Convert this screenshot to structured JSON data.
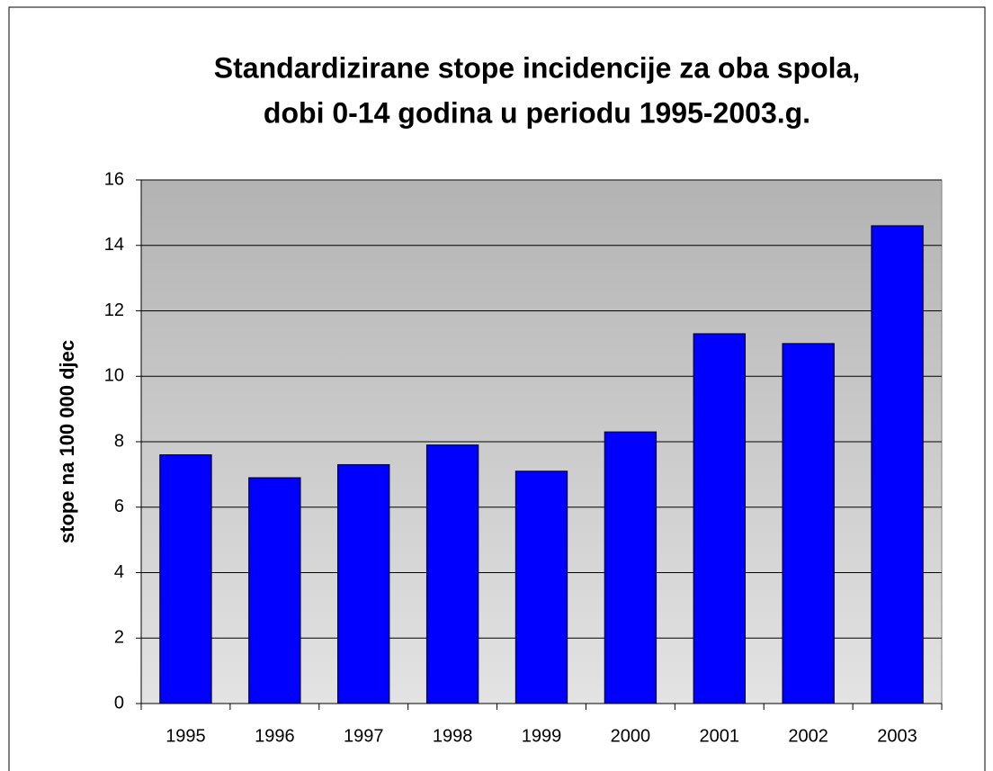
{
  "chart_data": {
    "type": "bar",
    "title": [
      "Standardizirane stope incidencije za oba spola,",
      "dobi 0-14 godina u periodu 1995-2003.g."
    ],
    "y_label": "stope na 100 000 djec",
    "categories": [
      "1995",
      "1996",
      "1997",
      "1998",
      "1999",
      "2000",
      "2001",
      "2002",
      "2003"
    ],
    "values": [
      7.6,
      6.9,
      7.3,
      7.9,
      7.1,
      8.3,
      11.3,
      11.0,
      14.6
    ],
    "color": "#0000ff",
    "ylim": [
      0,
      16
    ],
    "yticks": [
      0,
      2,
      4,
      6,
      8,
      10,
      12,
      14,
      16
    ],
    "grid": true
  }
}
